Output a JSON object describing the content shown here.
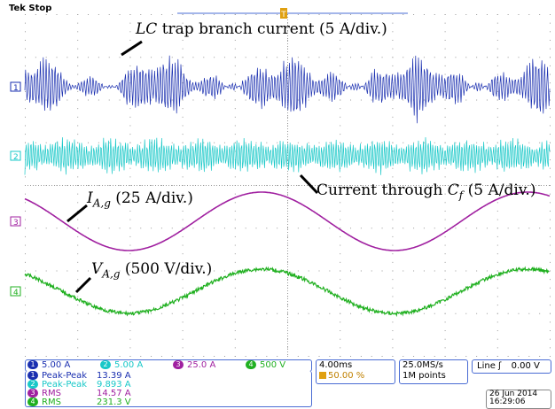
{
  "status": {
    "brand": "Tek",
    "state": "Stop"
  },
  "trigger_marker": {
    "label": "T"
  },
  "colors": {
    "ch1": "#1a2fb0",
    "ch2": "#18c8c8",
    "ch3": "#a020a0",
    "ch4": "#20b020",
    "grid": "#9a9a9a",
    "frame": "#4a6cd4"
  },
  "annotations": {
    "lc_italic": "LC",
    "lc_rest": " trap branch current (5 A/div.)",
    "cf_text": "Current through ",
    "cf_var": "C",
    "cf_sub": "f",
    "cf_rest": " (5 A/div.)",
    "ia_var": "I",
    "ia_sub": "A,g",
    "ia_rest": " (25 A/div.)",
    "va_var": "V",
    "va_sub": "A,g",
    "va_rest": " (500 V/div.)"
  },
  "channels": [
    {
      "num": "1",
      "scale": "5.00 A",
      "color": "#1a2fb0"
    },
    {
      "num": "2",
      "scale": "5.00 A",
      "color": "#18c8c8"
    },
    {
      "num": "3",
      "scale": "25.0 A",
      "color": "#a020a0"
    },
    {
      "num": "4",
      "scale": "500 V",
      "color": "#20b020"
    }
  ],
  "measurements": [
    {
      "ch": "1",
      "name": "Peak-Peak",
      "value": "13.39 A",
      "color": "#1a2fb0"
    },
    {
      "ch": "2",
      "name": "Peak-Peak",
      "value": "9.893 A",
      "color": "#18c8c8"
    },
    {
      "ch": "3",
      "name": "RMS",
      "value": "14.57 A",
      "color": "#a020a0"
    },
    {
      "ch": "4",
      "name": "RMS",
      "value": "231.3 V",
      "color": "#20b020"
    }
  ],
  "timebase": {
    "per_div": "4.00ms",
    "position": "50.00 %"
  },
  "acquisition": {
    "rate": "25.0MS/s",
    "length": "1M points"
  },
  "trigger": {
    "source": "Line",
    "slope": "ʃ",
    "level": "0.00 V"
  },
  "date": {
    "day": "26 Jun 2014",
    "time": "16:29:06"
  }
}
